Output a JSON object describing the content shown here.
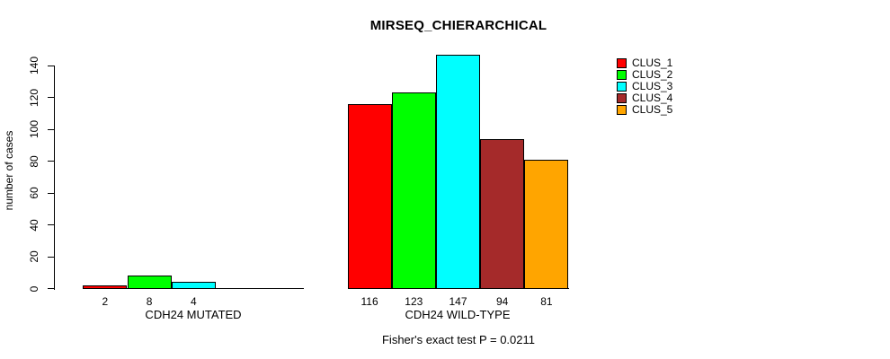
{
  "title": "MIRSEQ_CHIERARCHICAL",
  "ylabel": "number of cases",
  "annotation": "Fisher's exact test P = 0.0211",
  "chart_data": {
    "type": "bar",
    "title": "MIRSEQ_CHIERARCHICAL",
    "xlabel": "",
    "ylabel": "number of cases",
    "ylim": [
      0,
      140
    ],
    "yticks": [
      0,
      20,
      40,
      60,
      80,
      100,
      120,
      140
    ],
    "grid": false,
    "legend_position": "top-right",
    "categories": [
      "CDH24 MUTATED",
      "CDH24 WILD-TYPE"
    ],
    "series": [
      {
        "name": "CLUS_1",
        "color": "#FF0000",
        "values": [
          2,
          116
        ]
      },
      {
        "name": "CLUS_2",
        "color": "#00FF00",
        "values": [
          8,
          123
        ]
      },
      {
        "name": "CLUS_3",
        "color": "#00FFFF",
        "values": [
          4,
          147
        ]
      },
      {
        "name": "CLUS_4",
        "color": "#A52A2A",
        "values": [
          0,
          94
        ]
      },
      {
        "name": "CLUS_5",
        "color": "#FFA500",
        "values": [
          0,
          81
        ]
      }
    ],
    "bar_value_labels": true,
    "annotation": "Fisher's exact test P = 0.0211"
  },
  "colors": {
    "axis": "#000000",
    "text": "#000000",
    "background": "#FFFFFF"
  }
}
